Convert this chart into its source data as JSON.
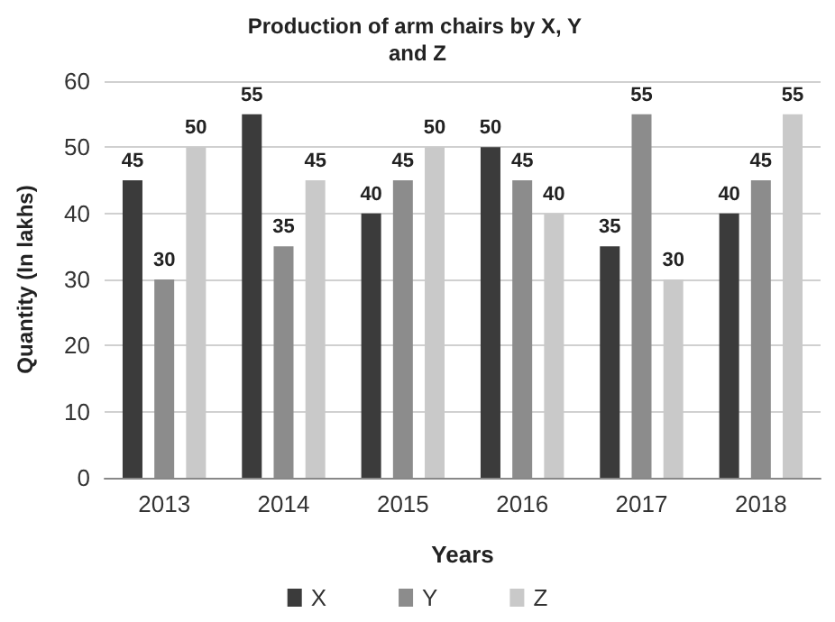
{
  "chart_data": {
    "type": "bar",
    "title": "Production of arm chairs by X, Y and Z",
    "xlabel": "Years",
    "ylabel": "Quantity (In lakhs)",
    "categories": [
      "2013",
      "2014",
      "2015",
      "2016",
      "2017",
      "2018"
    ],
    "series": [
      {
        "name": "X",
        "color": "#3b3b3b",
        "values": [
          45,
          55,
          40,
          50,
          35,
          40
        ]
      },
      {
        "name": "Y",
        "color": "#8c8c8c",
        "values": [
          30,
          35,
          45,
          45,
          55,
          45
        ]
      },
      {
        "name": "Z",
        "color": "#c9c9c9",
        "values": [
          50,
          45,
          50,
          40,
          30,
          55
        ]
      }
    ],
    "ylim": [
      0,
      60
    ],
    "yticks": [
      0,
      10,
      20,
      30,
      40,
      50,
      60
    ],
    "grid": "y",
    "legend": "bottom",
    "data_labels": true
  }
}
